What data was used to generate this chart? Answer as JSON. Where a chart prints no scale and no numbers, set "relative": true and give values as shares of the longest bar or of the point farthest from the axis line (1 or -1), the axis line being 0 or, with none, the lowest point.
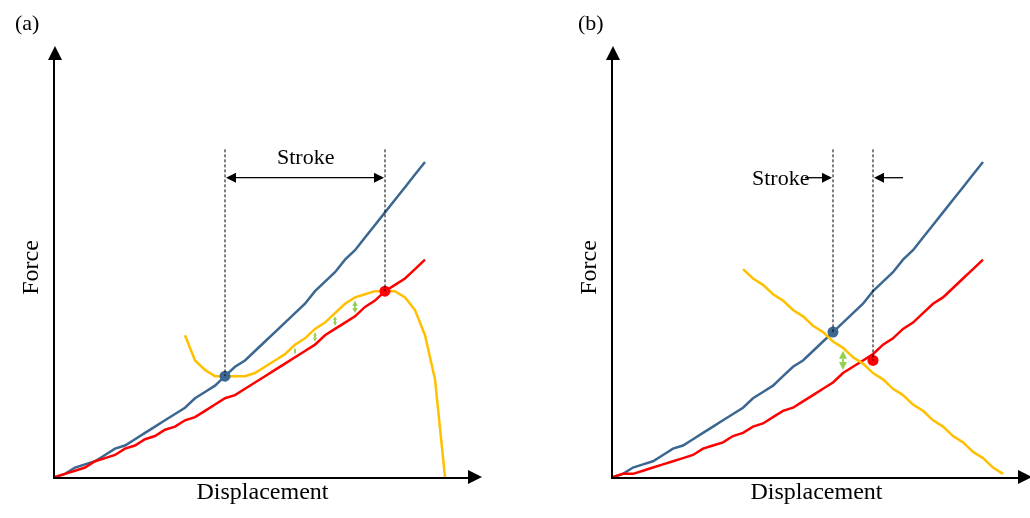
{
  "chart_data": [
    {
      "type": "line",
      "relative": true,
      "title": "(a)",
      "xlabel": "Displacement",
      "ylabel": "Force",
      "annotations": [
        "Stroke"
      ],
      "marker": "none",
      "categories": [
        null,
        null,
        null,
        null,
        null,
        null,
        null,
        null,
        null,
        null,
        null,
        null,
        null,
        null,
        null,
        null,
        null,
        null,
        null,
        null,
        null,
        null,
        null,
        null,
        null,
        null,
        null,
        null,
        null,
        null,
        null,
        null,
        null,
        null,
        null,
        null,
        null,
        null,
        null,
        null
      ],
      "series": [
        {
          "color": "#3b6790",
          "values": [
            0,
            0.01,
            0.03,
            0.04,
            0.05,
            0.07,
            0.09,
            0.1,
            0.12,
            0.14,
            0.16,
            0.18,
            0.2,
            0.22,
            0.25,
            0.27,
            0.29,
            0.32,
            0.35,
            0.37,
            0.4,
            0.43,
            0.46,
            0.49,
            0.52,
            0.55,
            0.59,
            0.62,
            0.65,
            0.69,
            0.72,
            0.76,
            0.8,
            0.84,
            0.88,
            0.92,
            0.96,
            1.0,
            null,
            null
          ]
        },
        {
          "color": "#ff0000",
          "values": [
            0,
            0.01,
            0.02,
            0.03,
            0.05,
            0.06,
            0.07,
            0.09,
            0.1,
            0.12,
            0.13,
            0.15,
            0.16,
            0.18,
            0.19,
            0.21,
            0.23,
            0.25,
            0.26,
            0.28,
            0.3,
            0.32,
            0.34,
            0.36,
            0.38,
            0.4,
            0.42,
            0.45,
            0.47,
            0.49,
            0.51,
            0.54,
            0.56,
            0.59,
            0.61,
            0.63,
            0.66,
            0.69,
            null,
            null
          ]
        },
        {
          "color": "#ffc000",
          "values": [
            null,
            null,
            null,
            null,
            null,
            null,
            null,
            null,
            null,
            null,
            null,
            null,
            null,
            0.45,
            0.37,
            0.34,
            0.32,
            0.32,
            0.32,
            0.32,
            0.33,
            0.35,
            0.37,
            0.39,
            0.42,
            0.44,
            0.47,
            0.49,
            0.52,
            0.55,
            0.57,
            0.58,
            0.59,
            0.59,
            0.59,
            0.57,
            0.53,
            0.45,
            0.31,
            0
          ]
        },
        {
          "color": "#3b6790",
          "marker": "circle",
          "values": [
            null,
            null,
            null,
            null,
            null,
            null,
            null,
            null,
            null,
            null,
            null,
            null,
            null,
            null,
            null,
            null,
            null,
            0.32,
            null,
            null,
            null,
            null,
            null,
            null,
            null,
            null,
            null,
            null,
            null,
            null,
            null,
            null,
            null,
            null,
            null,
            null,
            null,
            null,
            null,
            null
          ]
        },
        {
          "color": "#ff0000",
          "marker": "circle",
          "values": [
            null,
            null,
            null,
            null,
            null,
            null,
            null,
            null,
            null,
            null,
            null,
            null,
            null,
            null,
            null,
            null,
            null,
            null,
            null,
            null,
            null,
            null,
            null,
            null,
            null,
            null,
            null,
            null,
            null,
            null,
            null,
            null,
            null,
            0.59,
            null,
            null,
            null,
            null,
            null,
            null
          ]
        }
      ]
    },
    {
      "type": "line",
      "relative": true,
      "title": "(b)",
      "xlabel": "Displacement",
      "ylabel": "Force",
      "annotations": [
        "Stroke"
      ],
      "marker": "none",
      "categories": [
        null,
        null,
        null,
        null,
        null,
        null,
        null,
        null,
        null,
        null,
        null,
        null,
        null,
        null,
        null,
        null,
        null,
        null,
        null,
        null,
        null,
        null,
        null,
        null,
        null,
        null,
        null,
        null,
        null,
        null,
        null,
        null,
        null,
        null,
        null,
        null,
        null,
        null,
        null,
        null
      ],
      "series": [
        {
          "color": "#3b6790",
          "values": [
            0,
            0.01,
            0.03,
            0.04,
            0.05,
            0.07,
            0.09,
            0.1,
            0.12,
            0.14,
            0.16,
            0.18,
            0.2,
            0.22,
            0.25,
            0.27,
            0.29,
            0.32,
            0.35,
            0.37,
            0.4,
            0.43,
            0.46,
            0.49,
            0.52,
            0.55,
            0.59,
            0.62,
            0.65,
            0.69,
            0.72,
            0.76,
            0.8,
            0.84,
            0.88,
            0.92,
            0.96,
            1.0,
            null,
            null
          ]
        },
        {
          "color": "#ff0000",
          "values": [
            0,
            0.01,
            0.01,
            0.02,
            0.03,
            0.04,
            0.05,
            0.06,
            0.07,
            0.09,
            0.1,
            0.11,
            0.13,
            0.14,
            0.16,
            0.17,
            0.19,
            0.21,
            0.22,
            0.24,
            0.26,
            0.28,
            0.3,
            0.33,
            0.35,
            0.37,
            0.39,
            0.42,
            0.44,
            0.47,
            0.49,
            0.52,
            0.55,
            0.57,
            0.6,
            0.63,
            0.66,
            0.69,
            null,
            null
          ]
        },
        {
          "color": "#ffc000",
          "values": [
            null,
            null,
            null,
            null,
            null,
            null,
            null,
            null,
            null,
            null,
            null,
            null,
            null,
            0.66,
            0.63,
            0.61,
            0.58,
            0.56,
            0.53,
            0.51,
            0.48,
            0.46,
            0.43,
            0.41,
            0.38,
            0.36,
            0.33,
            0.31,
            0.28,
            0.26,
            0.23,
            0.21,
            0.18,
            0.16,
            0.13,
            0.11,
            0.08,
            0.06,
            0.03,
            0.01
          ]
        },
        {
          "color": "#3b6790",
          "marker": "circle",
          "values": [
            null,
            null,
            null,
            null,
            null,
            null,
            null,
            null,
            null,
            null,
            null,
            null,
            null,
            null,
            null,
            null,
            null,
            null,
            null,
            null,
            null,
            null,
            0.46,
            null,
            null,
            null,
            null,
            null,
            null,
            null,
            null,
            null,
            null,
            null,
            null,
            null,
            null,
            null,
            null,
            null
          ]
        },
        {
          "color": "#ff0000",
          "marker": "circle",
          "values": [
            null,
            null,
            null,
            null,
            null,
            null,
            null,
            null,
            null,
            null,
            null,
            null,
            null,
            null,
            null,
            null,
            null,
            null,
            null,
            null,
            null,
            null,
            null,
            null,
            null,
            null,
            0.37,
            null,
            null,
            null,
            null,
            null,
            null,
            null,
            null,
            null,
            null,
            null,
            null,
            null
          ]
        }
      ]
    }
  ]
}
